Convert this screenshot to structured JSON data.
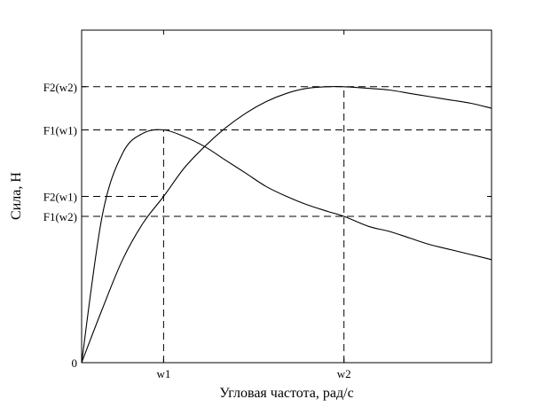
{
  "chart_data": {
    "type": "line",
    "title": "",
    "xlabel": "Угловая частота, рад/с",
    "ylabel": "Сила, Н",
    "xlim": [
      0,
      10
    ],
    "ylim": [
      0,
      10
    ],
    "grid": false,
    "legend": "none",
    "x_ticks": [
      {
        "value": 2.0,
        "label": "w1"
      },
      {
        "value": 6.4,
        "label": "w2"
      }
    ],
    "y_ticks": [
      {
        "value": 0,
        "label": "0"
      },
      {
        "value": 4.4,
        "label": "F1(w2)"
      },
      {
        "value": 5.0,
        "label": "F2(w1)"
      },
      {
        "value": 7.0,
        "label": "F1(w1)"
      },
      {
        "value": 8.3,
        "label": "F2(w2)"
      }
    ],
    "reference_lines": [
      {
        "axis": "y",
        "value": 8.3,
        "to_x": 10
      },
      {
        "axis": "y",
        "value": 7.0,
        "to_x": 10
      },
      {
        "axis": "y",
        "value": 5.0,
        "to_x": 2.0
      },
      {
        "axis": "y",
        "value": 4.4,
        "to_x": 10
      },
      {
        "axis": "x",
        "value": 2.0,
        "to_y": 7.0
      },
      {
        "axis": "x",
        "value": 6.4,
        "to_y": 8.3
      }
    ],
    "series": [
      {
        "x": [
          0,
          0.5,
          1.0,
          1.5,
          2.0,
          2.5,
          3.0,
          3.5,
          4.0,
          4.5,
          5.0,
          5.5,
          6.0,
          6.4,
          7.0,
          7.5,
          8.0,
          8.5,
          9.0,
          9.5,
          10.0
        ],
        "values": [
          0,
          4.4,
          6.3,
          6.9,
          7.0,
          6.8,
          6.5,
          6.1,
          5.7,
          5.3,
          5.0,
          4.75,
          4.55,
          4.4,
          4.1,
          3.95,
          3.75,
          3.55,
          3.4,
          3.25,
          3.1
        ]
      },
      {
        "x": [
          0,
          0.5,
          1.0,
          1.5,
          2.0,
          2.5,
          3.0,
          3.5,
          4.0,
          4.5,
          5.0,
          5.5,
          6.0,
          6.4,
          7.0,
          7.5,
          8.0,
          8.5,
          9.0,
          9.5,
          10.0
        ],
        "values": [
          0,
          1.6,
          3.1,
          4.2,
          5.0,
          5.85,
          6.5,
          7.05,
          7.5,
          7.85,
          8.1,
          8.25,
          8.3,
          8.3,
          8.25,
          8.2,
          8.1,
          8.0,
          7.9,
          7.8,
          7.65
        ]
      }
    ]
  }
}
